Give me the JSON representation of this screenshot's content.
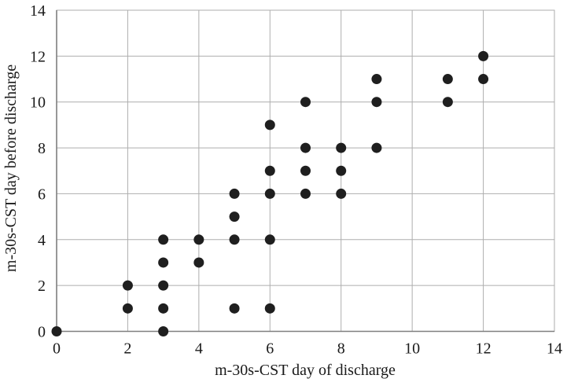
{
  "chart_data": {
    "type": "scatter",
    "title": "",
    "xlabel": "m-30s-CST day of discharge",
    "ylabel": "m-30s-CST day before discharge",
    "xlim": [
      0,
      14
    ],
    "ylim": [
      0,
      14
    ],
    "xticks": [
      0,
      2,
      4,
      6,
      8,
      10,
      12,
      14
    ],
    "yticks": [
      0,
      2,
      4,
      6,
      8,
      10,
      12,
      14
    ],
    "grid": true,
    "legend_position": "none",
    "marker": "circle",
    "marker_color": "#1f1f1f",
    "grid_color": "#aeaeae",
    "axis_color": "#7f7f7f",
    "points": [
      [
        0,
        0
      ],
      [
        2,
        1
      ],
      [
        2,
        2
      ],
      [
        3,
        0
      ],
      [
        3,
        1
      ],
      [
        3,
        2
      ],
      [
        3,
        3
      ],
      [
        3,
        4
      ],
      [
        4,
        3
      ],
      [
        4,
        4
      ],
      [
        5,
        1
      ],
      [
        5,
        4
      ],
      [
        5,
        5
      ],
      [
        5,
        6
      ],
      [
        6,
        1
      ],
      [
        6,
        4
      ],
      [
        6,
        6
      ],
      [
        6,
        7
      ],
      [
        6,
        9
      ],
      [
        7,
        6
      ],
      [
        7,
        7
      ],
      [
        7,
        8
      ],
      [
        7,
        10
      ],
      [
        8,
        6
      ],
      [
        8,
        7
      ],
      [
        8,
        8
      ],
      [
        9,
        8
      ],
      [
        9,
        10
      ],
      [
        9,
        11
      ],
      [
        11,
        10
      ],
      [
        11,
        11
      ],
      [
        12,
        11
      ],
      [
        12,
        12
      ]
    ]
  }
}
